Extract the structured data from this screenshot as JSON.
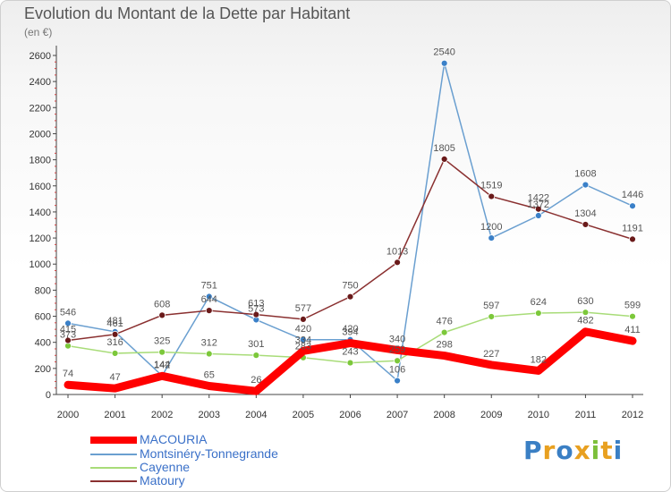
{
  "header": {
    "title": "Evolution du Montant de la Dette par Habitant",
    "subtitle": "(en €)"
  },
  "brand": {
    "letters": [
      "P",
      "r",
      "o",
      "x",
      "i",
      "t",
      "i"
    ],
    "colors": [
      "#3a7fc4",
      "#e8a020",
      "#3a7fc4",
      "#e8a020",
      "#7cbf3a",
      "#e8a020",
      "#3a7fc4"
    ]
  },
  "chart_data": {
    "type": "line",
    "title": "Evolution du Montant de la Dette par Habitant",
    "subtitle": "(en €)",
    "xlabel": "",
    "ylabel": "",
    "x": [
      "2000",
      "2001",
      "2002",
      "2003",
      "2004",
      "2005",
      "2006",
      "2007",
      "2008",
      "2009",
      "2010",
      "2011",
      "2012"
    ],
    "ylim": [
      0,
      2600
    ],
    "yticks": [
      0,
      200,
      400,
      600,
      800,
      1000,
      1200,
      1400,
      1600,
      1800,
      2000,
      2200,
      2400,
      2600
    ],
    "grid": false,
    "legend_position": "bottom-left",
    "series": [
      {
        "name": "MACOURIA",
        "color": "#ff0000",
        "emphasis": "thick",
        "values": [
          74,
          47,
          142,
          65,
          26,
          334,
          394,
          340,
          298,
          227,
          182,
          482,
          411
        ],
        "labels": [
          "74",
          "47",
          "142",
          "65",
          "26",
          "334",
          "394",
          "340",
          "298",
          "227",
          "182",
          "482",
          "411"
        ]
      },
      {
        "name": "Montsinéry-Tonnegrande",
        "color": "#6a9fd0",
        "marker": "#3a80c8",
        "emphasis": "thin",
        "values": [
          546,
          481,
          144,
          751,
          573,
          420,
          420,
          106,
          2540,
          1200,
          1372,
          1608,
          1446
        ],
        "labels": [
          "546",
          "481",
          "144",
          "751",
          "573",
          "420",
          "420",
          "106",
          "2540",
          "1200",
          "1372",
          "1608",
          "1446"
        ]
      },
      {
        "name": "Cayenne",
        "color": "#a8dc78",
        "marker": "#7cc83a",
        "emphasis": "thin",
        "values": [
          373,
          316,
          325,
          312,
          301,
          283,
          243,
          259,
          476,
          597,
          624,
          630,
          599
        ],
        "labels": [
          "373",
          "316",
          "325",
          "312",
          "301",
          "283",
          "243",
          "259",
          "476",
          "597",
          "624",
          "630",
          "599"
        ]
      },
      {
        "name": "Matoury",
        "color": "#8a3030",
        "marker": "#6a1a1a",
        "emphasis": "thin",
        "values": [
          415,
          461,
          608,
          644,
          613,
          577,
          750,
          1013,
          1805,
          1519,
          1422,
          1304,
          1191
        ],
        "labels": [
          "415",
          "461",
          "608",
          "644",
          "613",
          "577",
          "750",
          "1013",
          "1805",
          "1519",
          "1422",
          "1304",
          "1191"
        ]
      }
    ]
  }
}
